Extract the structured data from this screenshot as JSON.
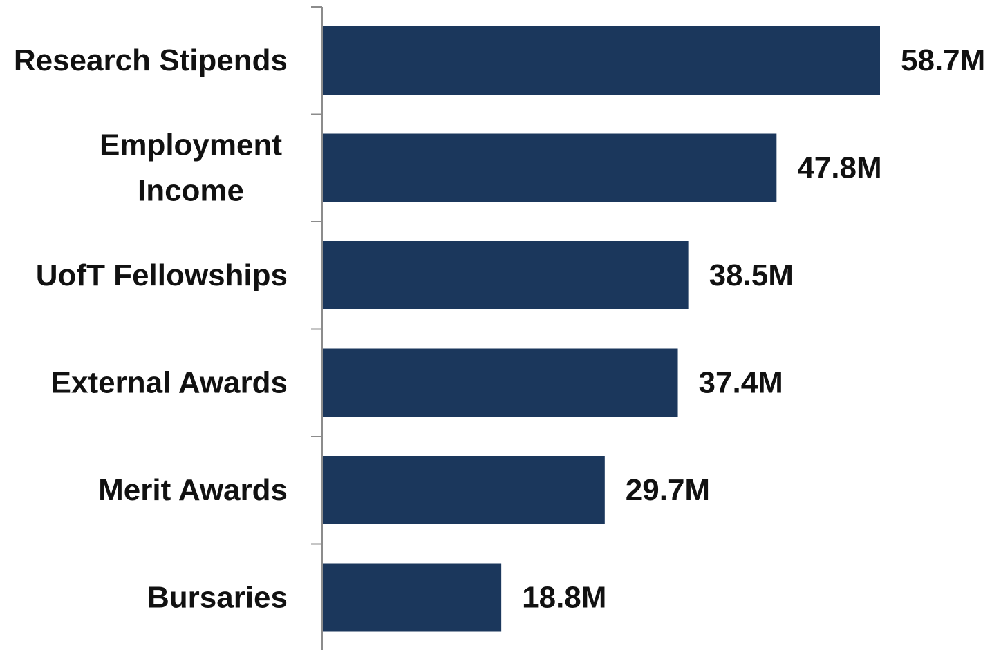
{
  "chart_data": {
    "type": "bar",
    "orientation": "horizontal",
    "title": "",
    "xlabel": "",
    "ylabel": "",
    "categories": [
      "Research Stipends",
      "Employment Income",
      "UofT Fellowships",
      "External Awards",
      "Merit Awards",
      "Bursaries"
    ],
    "values": [
      58.7,
      47.8,
      38.5,
      37.4,
      29.7,
      18.8
    ],
    "value_labels": [
      "58.7M",
      "47.8M",
      "38.5M",
      "37.4M",
      "29.7M",
      "18.8M"
    ],
    "unit": "M",
    "xlim": [
      0,
      58.7
    ],
    "grid": false,
    "legend": "none",
    "bar_color": "#1b375c"
  }
}
